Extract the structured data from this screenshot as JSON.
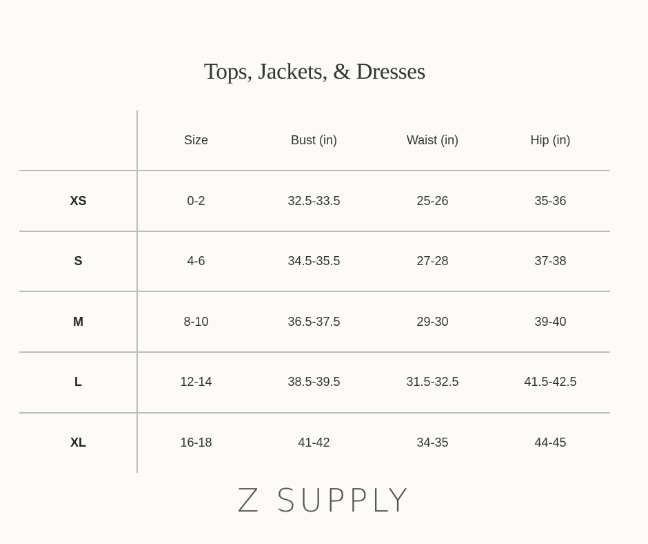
{
  "title": "Tops, Jackets, & Dresses",
  "table": {
    "headers": [
      "",
      "Size",
      "Bust (in)",
      "Waist (in)",
      "Hip (in)"
    ],
    "rows": [
      [
        "XS",
        "0-2",
        "32.5-33.5",
        "25-26",
        "35-36"
      ],
      [
        "S",
        "4-6",
        "34.5-35.5",
        "27-28",
        "37-38"
      ],
      [
        "M",
        "8-10",
        "36.5-37.5",
        "29-30",
        "39-40"
      ],
      [
        "L",
        "12-14",
        "38.5-39.5",
        "31.5-32.5",
        "41.5-42.5"
      ],
      [
        "XL",
        "16-18",
        "41-42",
        "34-35",
        "44-45"
      ]
    ]
  },
  "brand": "Z SUPPLY",
  "colors": {
    "background": "#fcfbf7",
    "rule": "#bdbdbd",
    "text": "#333333"
  }
}
